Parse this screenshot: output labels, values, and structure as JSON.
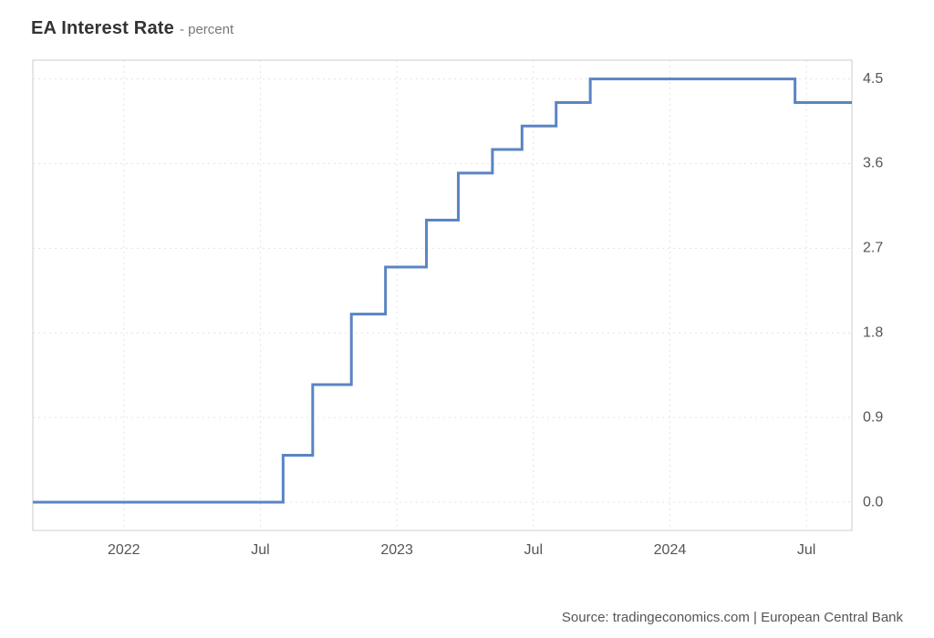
{
  "title": {
    "main": "EA Interest Rate",
    "sub": "- percent"
  },
  "source": "Source: tradingeconomics.com | European Central Bank",
  "chart": {
    "type": "step-line",
    "background_color": "#ffffff",
    "plot_border_color": "#cccccc",
    "grid_color": "#e3e3e3",
    "grid_dash": "2,4",
    "line_color": "#5a84c4",
    "line_width": 3,
    "axis_label_color": "#555555",
    "axis_label_fontsize": 16,
    "x": {
      "min": 0,
      "max": 36,
      "ticks": [
        {
          "v": 4,
          "label": "2022"
        },
        {
          "v": 10,
          "label": "Jul"
        },
        {
          "v": 16,
          "label": "2023"
        },
        {
          "v": 22,
          "label": "Jul"
        },
        {
          "v": 28,
          "label": "2024"
        },
        {
          "v": 34,
          "label": "Jul"
        }
      ]
    },
    "y": {
      "min": -0.3,
      "max": 4.7,
      "ticks": [
        {
          "v": 0.0,
          "label": "0.0"
        },
        {
          "v": 0.9,
          "label": "0.9"
        },
        {
          "v": 1.8,
          "label": "1.8"
        },
        {
          "v": 2.7,
          "label": "2.7"
        },
        {
          "v": 3.6,
          "label": "3.6"
        },
        {
          "v": 4.5,
          "label": "4.5"
        }
      ]
    },
    "series": [
      {
        "x": 0,
        "y": 0.0
      },
      {
        "x": 11,
        "y": 0.0
      },
      {
        "x": 11,
        "y": 0.5
      },
      {
        "x": 12.3,
        "y": 0.5
      },
      {
        "x": 12.3,
        "y": 1.25
      },
      {
        "x": 14,
        "y": 1.25
      },
      {
        "x": 14,
        "y": 2.0
      },
      {
        "x": 15.5,
        "y": 2.0
      },
      {
        "x": 15.5,
        "y": 2.5
      },
      {
        "x": 17.3,
        "y": 2.5
      },
      {
        "x": 17.3,
        "y": 3.0
      },
      {
        "x": 18.7,
        "y": 3.0
      },
      {
        "x": 18.7,
        "y": 3.5
      },
      {
        "x": 20.2,
        "y": 3.5
      },
      {
        "x": 20.2,
        "y": 3.75
      },
      {
        "x": 21.5,
        "y": 3.75
      },
      {
        "x": 21.5,
        "y": 4.0
      },
      {
        "x": 23,
        "y": 4.0
      },
      {
        "x": 23,
        "y": 4.25
      },
      {
        "x": 24.5,
        "y": 4.25
      },
      {
        "x": 24.5,
        "y": 4.5
      },
      {
        "x": 33.5,
        "y": 4.5
      },
      {
        "x": 33.5,
        "y": 4.25
      },
      {
        "x": 36,
        "y": 4.25
      }
    ]
  }
}
